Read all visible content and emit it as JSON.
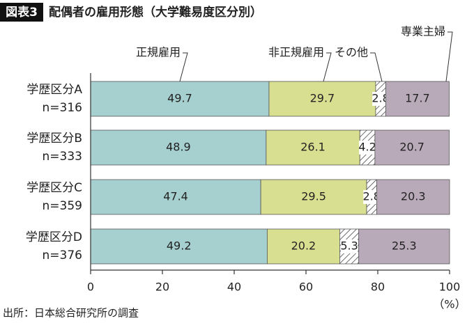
{
  "chart_data": {
    "type": "stacked-barh",
    "badge": "図表3",
    "title": "配偶者の雇用形態（大学難易度区分別）",
    "categories": [
      "学歴区分A",
      "学歴区分B",
      "学歴区分C",
      "学歴区分D"
    ],
    "category_notes": [
      "n=316",
      "n=333",
      "n=359",
      "n=376"
    ],
    "series": [
      {
        "name": "正規雇用",
        "color": "#a6cfcf",
        "values": [
          49.7,
          48.9,
          47.4,
          49.2
        ]
      },
      {
        "name": "非正規雇用",
        "color": "#d9df90",
        "values": [
          29.7,
          26.1,
          29.5,
          20.2
        ]
      },
      {
        "name": "その他",
        "color": "hatch",
        "values": [
          2.8,
          4.2,
          2.8,
          5.3
        ]
      },
      {
        "name": "専業主婦",
        "color": "#b9aab9",
        "values": [
          17.7,
          20.7,
          20.3,
          25.3
        ]
      }
    ],
    "xlim": [
      0,
      100
    ],
    "xticks": [
      0,
      20,
      40,
      60,
      80,
      100
    ],
    "unit": "（%）",
    "source": "出所：日本総合研究所の調査"
  }
}
